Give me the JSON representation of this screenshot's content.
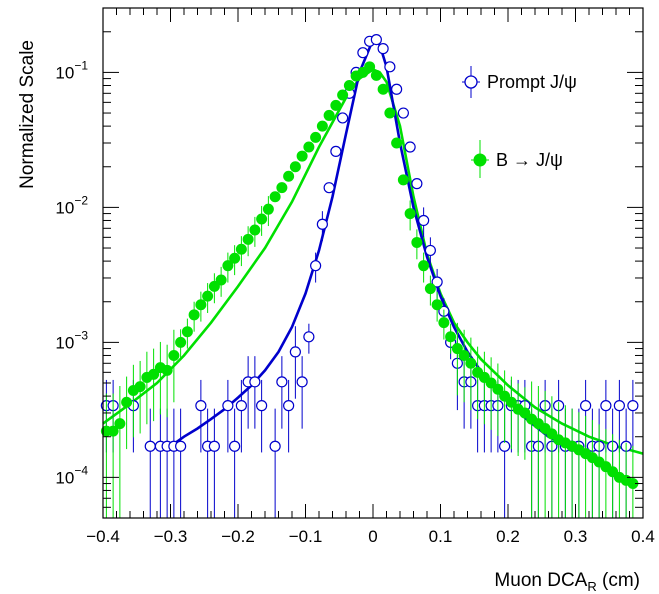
{
  "chart_data": {
    "type": "scatter",
    "xlabel": "Muon DCA",
    "xlabel_sub": "R",
    "xlabel_unit": " (cm)",
    "ylabel": "Normalized Scale",
    "xlim": [
      -0.4,
      0.4
    ],
    "ylim": [
      5e-05,
      0.3
    ],
    "log_y": true,
    "grid": false,
    "legend_position": "top-right",
    "x_ticks": [
      -0.4,
      -0.3,
      -0.2,
      -0.1,
      0,
      0.1,
      0.2,
      0.3,
      0.4
    ],
    "x_tick_labels": [
      "−0.4",
      "−0.3",
      "−0.2",
      "−0.1",
      "0",
      "0.1",
      "0.2",
      "0.3",
      "0.4"
    ],
    "y_tick_labels": [
      {
        "base": "10",
        "exp": "−1",
        "value": 0.1
      },
      {
        "base": "10",
        "exp": "−2",
        "value": 0.01
      },
      {
        "base": "10",
        "exp": "−3",
        "value": 0.001
      },
      {
        "base": "10",
        "exp": "−4",
        "value": 0.0001
      }
    ],
    "series": [
      {
        "name": "Prompt J/ψ",
        "color": "#0000cc",
        "marker": "open-circle",
        "x": [
          -0.395,
          -0.385,
          -0.355,
          -0.33,
          -0.315,
          -0.305,
          -0.295,
          -0.285,
          -0.255,
          -0.245,
          -0.235,
          -0.215,
          -0.205,
          -0.195,
          -0.185,
          -0.175,
          -0.165,
          -0.145,
          -0.135,
          -0.125,
          -0.115,
          -0.105,
          -0.095,
          -0.085,
          -0.075,
          -0.065,
          -0.055,
          -0.045,
          -0.035,
          -0.025,
          -0.015,
          -0.005,
          0.005,
          0.015,
          0.025,
          0.035,
          0.045,
          0.055,
          0.065,
          0.075,
          0.085,
          0.095,
          0.105,
          0.115,
          0.125,
          0.135,
          0.145,
          0.155,
          0.165,
          0.175,
          0.185,
          0.195,
          0.205,
          0.215,
          0.225,
          0.235,
          0.245,
          0.255,
          0.265,
          0.275,
          0.285,
          0.295,
          0.305,
          0.315,
          0.325,
          0.335,
          0.345,
          0.355,
          0.365,
          0.375,
          0.385
        ],
        "y": [
          0.00034,
          0.00034,
          0.00034,
          0.00017,
          0.00017,
          0.00017,
          0.00017,
          0.00017,
          0.00034,
          0.00017,
          0.00017,
          0.00034,
          0.00017,
          0.00034,
          0.00051,
          0.00051,
          0.00034,
          0.00017,
          0.00051,
          0.00034,
          0.00085,
          0.00051,
          0.0011,
          0.0037,
          0.0075,
          0.014,
          0.026,
          0.046,
          0.07,
          0.1,
          0.14,
          0.17,
          0.175,
          0.15,
          0.11,
          0.075,
          0.05,
          0.028,
          0.015,
          0.008,
          0.0048,
          0.0028,
          0.0017,
          0.001,
          0.0007,
          0.00051,
          0.00051,
          0.00034,
          0.00034,
          0.00034,
          0.00034,
          0.00017,
          0.00034,
          0.00034,
          0.00034,
          0.00017,
          0.00017,
          0.00034,
          0.00017,
          0.00034,
          0.00017,
          0.00017,
          0.00017,
          0.00034,
          0.00017,
          0.00017,
          0.00034,
          0.00017,
          0.00034,
          0.00017,
          0.00034
        ],
        "fit": {
          "x": [
            -0.3,
            -0.28,
            -0.26,
            -0.24,
            -0.22,
            -0.2,
            -0.18,
            -0.16,
            -0.14,
            -0.12,
            -0.1,
            -0.08,
            -0.06,
            -0.04,
            -0.02,
            0.0,
            0.01,
            0.02,
            0.04,
            0.06,
            0.08,
            0.1,
            0.12,
            0.14,
            0.16,
            0.18,
            0.2,
            0.22,
            0.24,
            0.26,
            0.28,
            0.3
          ],
          "y": [
            0.00017,
            0.0002,
            0.00023,
            0.00027,
            0.00032,
            0.00039,
            0.00048,
            0.00062,
            0.00085,
            0.0013,
            0.0023,
            0.0048,
            0.012,
            0.035,
            0.1,
            0.175,
            0.16,
            0.11,
            0.03,
            0.01,
            0.0043,
            0.0022,
            0.0013,
            0.00085,
            0.00061,
            0.00046,
            0.00036,
            0.00029,
            0.00024,
            0.0002,
            0.00018,
            0.00016
          ]
        }
      },
      {
        "name": "B → J/ψ",
        "color": "#00e000",
        "marker": "filled-circle",
        "x": [
          -0.395,
          -0.385,
          -0.375,
          -0.365,
          -0.355,
          -0.345,
          -0.335,
          -0.325,
          -0.315,
          -0.305,
          -0.295,
          -0.285,
          -0.275,
          -0.265,
          -0.255,
          -0.245,
          -0.235,
          -0.225,
          -0.215,
          -0.205,
          -0.195,
          -0.185,
          -0.175,
          -0.165,
          -0.155,
          -0.145,
          -0.135,
          -0.125,
          -0.115,
          -0.105,
          -0.095,
          -0.085,
          -0.075,
          -0.065,
          -0.055,
          -0.045,
          -0.035,
          -0.025,
          -0.015,
          -0.005,
          0.005,
          0.015,
          0.025,
          0.035,
          0.045,
          0.055,
          0.065,
          0.075,
          0.085,
          0.095,
          0.105,
          0.115,
          0.125,
          0.135,
          0.145,
          0.155,
          0.165,
          0.175,
          0.185,
          0.195,
          0.205,
          0.215,
          0.225,
          0.235,
          0.245,
          0.255,
          0.265,
          0.275,
          0.285,
          0.295,
          0.305,
          0.315,
          0.325,
          0.335,
          0.345,
          0.355,
          0.365,
          0.375,
          0.385
        ],
        "y": [
          0.00022,
          0.00022,
          0.00025,
          0.00036,
          0.00044,
          0.00047,
          0.00055,
          0.00058,
          0.00065,
          0.00062,
          0.0008,
          0.001,
          0.0012,
          0.0016,
          0.0019,
          0.0022,
          0.0026,
          0.0029,
          0.0037,
          0.0042,
          0.0049,
          0.0058,
          0.0068,
          0.0082,
          0.0097,
          0.012,
          0.014,
          0.017,
          0.02,
          0.024,
          0.028,
          0.033,
          0.04,
          0.048,
          0.057,
          0.068,
          0.08,
          0.094,
          0.1,
          0.11,
          0.095,
          0.075,
          0.05,
          0.03,
          0.016,
          0.009,
          0.0055,
          0.0037,
          0.0025,
          0.0019,
          0.0014,
          0.0011,
          0.0009,
          0.0008,
          0.0007,
          0.0006,
          0.00055,
          0.0005,
          0.00045,
          0.0004,
          0.00036,
          0.00032,
          0.0003,
          0.00027,
          0.00025,
          0.00023,
          0.00021,
          0.00019,
          0.00018,
          0.00017,
          0.00016,
          0.00015,
          0.00014,
          0.00013,
          0.00012,
          0.00011,
          0.0001,
          9.5e-05,
          9e-05
        ],
        "fit": {
          "x": [
            -0.4,
            -0.36,
            -0.32,
            -0.28,
            -0.24,
            -0.2,
            -0.16,
            -0.12,
            -0.08,
            -0.04,
            -0.02,
            0.0,
            0.01,
            0.02,
            0.04,
            0.06,
            0.08,
            0.1,
            0.12,
            0.14,
            0.16,
            0.18,
            0.2,
            0.24,
            0.28,
            0.32,
            0.36,
            0.4
          ],
          "y": [
            0.00025,
            0.00035,
            0.0005,
            0.0008,
            0.0014,
            0.0026,
            0.005,
            0.011,
            0.028,
            0.065,
            0.09,
            0.105,
            0.1,
            0.085,
            0.04,
            0.012,
            0.0045,
            0.0023,
            0.0014,
            0.001,
            0.00075,
            0.0006,
            0.00048,
            0.00033,
            0.00025,
            0.0002,
            0.00017,
            0.00015
          ]
        }
      }
    ]
  }
}
